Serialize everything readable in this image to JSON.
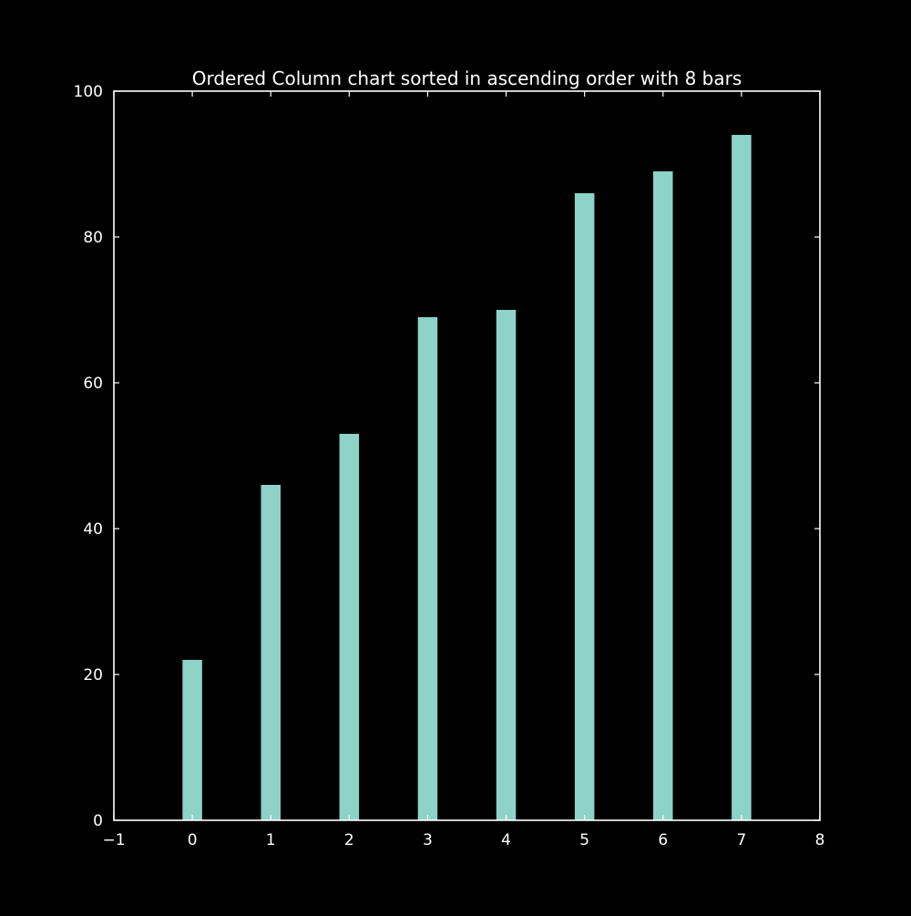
{
  "chart_data": {
    "type": "bar",
    "title": "Ordered Column chart sorted in ascending order with 8 bars",
    "xlabel": "",
    "ylabel": "",
    "x": [
      0,
      1,
      2,
      3,
      4,
      5,
      6,
      7
    ],
    "values": [
      22,
      46,
      53,
      69,
      70,
      86,
      89,
      94
    ],
    "xlim": [
      -1,
      8
    ],
    "ylim": [
      0,
      100
    ],
    "xticks": [
      "−1",
      "0",
      "1",
      "2",
      "3",
      "4",
      "5",
      "6",
      "7",
      "8"
    ],
    "yticks": [
      "0",
      "20",
      "40",
      "60",
      "80",
      "100"
    ],
    "grid": false,
    "legend": "none",
    "colors": {
      "background": "#000000",
      "bar": "#8dd3c7",
      "axes": "#ffffff",
      "text": "#ffffff"
    }
  }
}
